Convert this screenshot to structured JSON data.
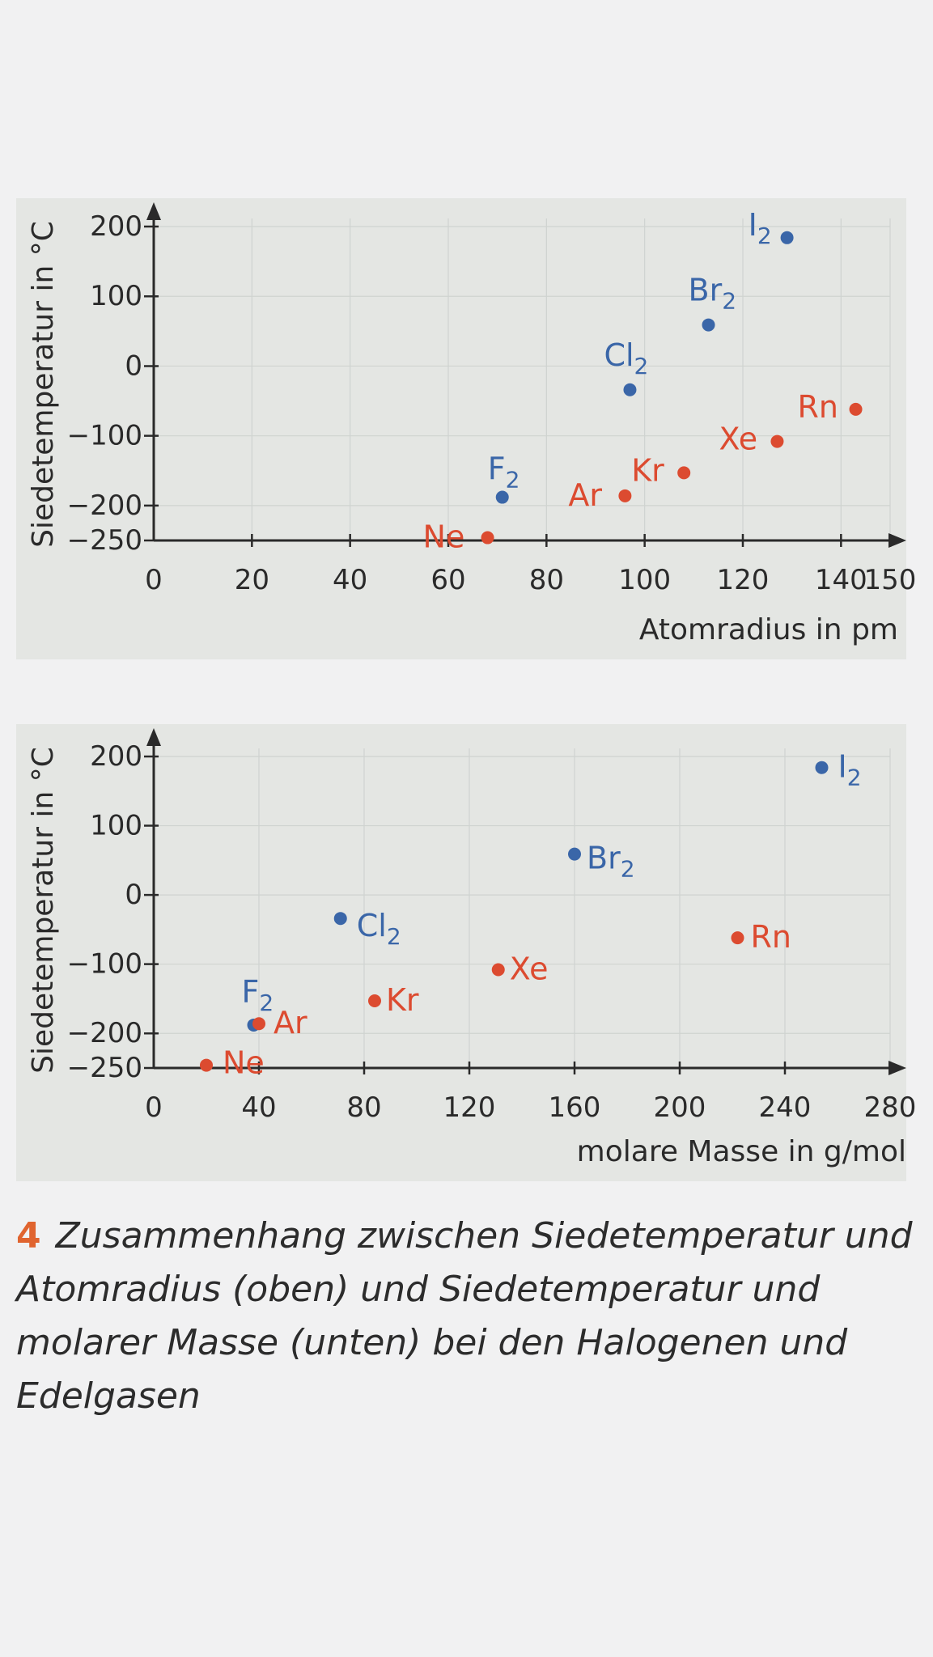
{
  "colors": {
    "halogen": "#3a66a8",
    "noble_gas": "#dc4b30",
    "axis": "#2a2a2a",
    "grid": "#cfd3d0",
    "accent": "#e0642f"
  },
  "chart_data": [
    {
      "type": "scatter",
      "xlabel": "Atomradius in pm",
      "ylabel": "Siedetemperatur in °C",
      "xlim": [
        0,
        150
      ],
      "ylim": [
        -250,
        200
      ],
      "xticks": [
        "0",
        "20",
        "40",
        "60",
        "80",
        "100",
        "120",
        "140",
        "150"
      ],
      "yticks": [
        "200",
        "100",
        "0",
        "−100",
        "−200",
        "−250"
      ],
      "grid": true,
      "series": [
        {
          "group": "halogen",
          "points": [
            {
              "label": "F",
              "sub": "2",
              "x": 71,
              "y": -188
            },
            {
              "label": "Cl",
              "sub": "2",
              "x": 97,
              "y": -34
            },
            {
              "label": "Br",
              "sub": "2",
              "x": 113,
              "y": 59
            },
            {
              "label": "I",
              "sub": "2",
              "x": 129,
              "y": 184
            }
          ]
        },
        {
          "group": "noble_gas",
          "points": [
            {
              "label": "Ne",
              "sub": "",
              "x": 68,
              "y": -246
            },
            {
              "label": "Ar",
              "sub": "",
              "x": 96,
              "y": -186
            },
            {
              "label": "Kr",
              "sub": "",
              "x": 108,
              "y": -153
            },
            {
              "label": "Xe",
              "sub": "",
              "x": 127,
              "y": -108
            },
            {
              "label": "Rn",
              "sub": "",
              "x": 143,
              "y": -62
            }
          ]
        }
      ]
    },
    {
      "type": "scatter",
      "xlabel": "molare Masse in g/mol",
      "ylabel": "Siedetemperatur in °C",
      "xlim": [
        0,
        280
      ],
      "ylim": [
        -250,
        200
      ],
      "xticks": [
        "0",
        "40",
        "80",
        "120",
        "160",
        "200",
        "240",
        "280"
      ],
      "yticks": [
        "200",
        "100",
        "0",
        "−100",
        "−200",
        "−250"
      ],
      "grid": true,
      "series": [
        {
          "group": "halogen",
          "points": [
            {
              "label": "F",
              "sub": "2",
              "x": 38,
              "y": -188
            },
            {
              "label": "Cl",
              "sub": "2",
              "x": 71,
              "y": -34
            },
            {
              "label": "Br",
              "sub": "2",
              "x": 160,
              "y": 59
            },
            {
              "label": "I",
              "sub": "2",
              "x": 254,
              "y": 184
            }
          ]
        },
        {
          "group": "noble_gas",
          "points": [
            {
              "label": "Ne",
              "sub": "",
              "x": 20,
              "y": -246
            },
            {
              "label": "Ar",
              "sub": "",
              "x": 40,
              "y": -186
            },
            {
              "label": "Kr",
              "sub": "",
              "x": 84,
              "y": -153
            },
            {
              "label": "Xe",
              "sub": "",
              "x": 131,
              "y": -108
            },
            {
              "label": "Rn",
              "sub": "",
              "x": 222,
              "y": -62
            }
          ]
        }
      ]
    }
  ],
  "caption": {
    "number": "4",
    "text": "Zusammenhang zwischen Siedetemperatur und Atomradius (oben) und Siedetemperatur und molarer Masse (unten) bei den Halogenen und Edelgasen"
  }
}
